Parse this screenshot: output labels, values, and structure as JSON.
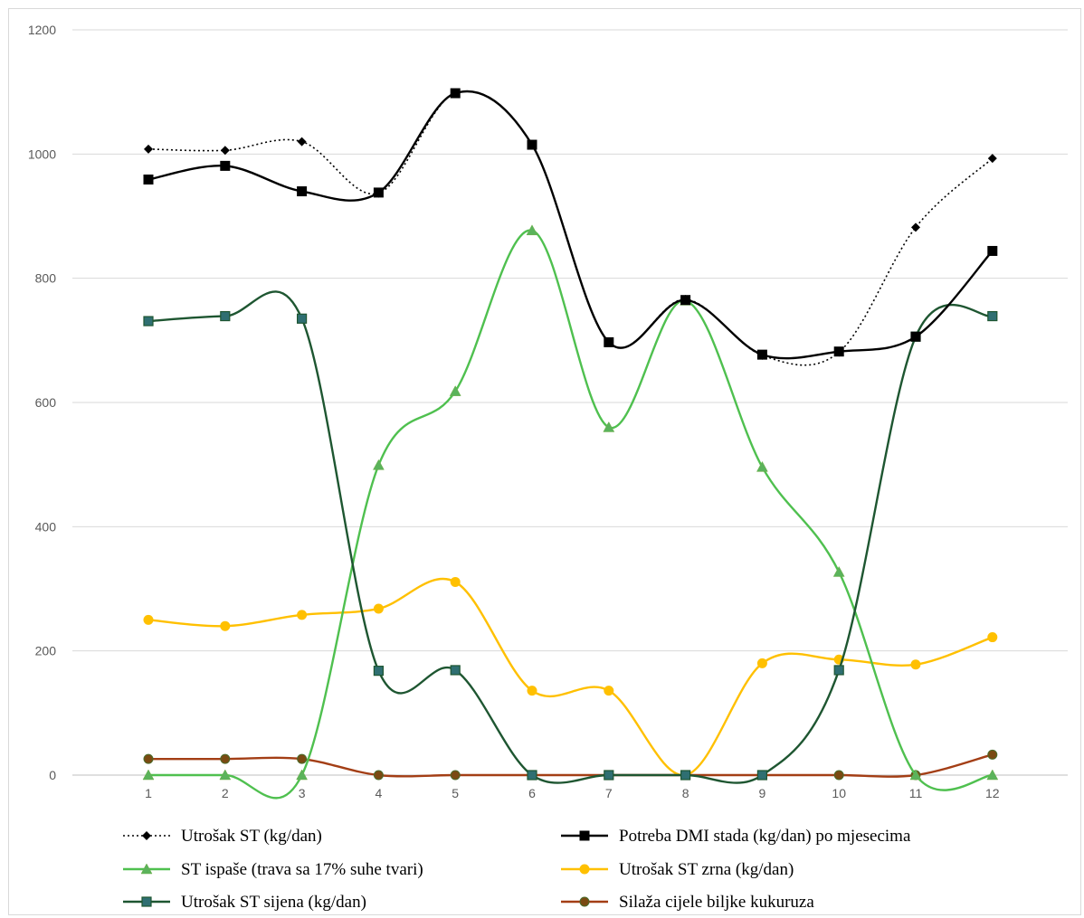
{
  "chart_data": {
    "type": "line",
    "title": "",
    "xlabel": "",
    "ylabel": "",
    "x": [
      1,
      2,
      3,
      4,
      5,
      6,
      7,
      8,
      9,
      10,
      11,
      12
    ],
    "x_tick_labels": [
      "1",
      "2",
      "3",
      "4",
      "5",
      "6",
      "7",
      "8",
      "9",
      "10",
      "11",
      "12"
    ],
    "ylim": [
      0,
      1200
    ],
    "y_ticks": [
      0,
      200,
      400,
      600,
      800,
      1000,
      1200
    ],
    "y_tick_labels": [
      "0",
      "200",
      "400",
      "600",
      "800",
      "1000",
      "1200"
    ],
    "grid": "horizontal",
    "smooth": true,
    "legend_position": "bottom",
    "series": [
      {
        "name": "Utrošak ST (kg/dan)",
        "color": "#000000",
        "dash": "dotted",
        "marker": "diamond",
        "values": [
          1008,
          1006,
          1020,
          937,
          1098,
          1015,
          697,
          766,
          676,
          681,
          882,
          993
        ]
      },
      {
        "name": "Potreba DMI stada (kg/dan) po mjesecima",
        "color": "#000000",
        "dash": "solid",
        "marker": "square",
        "values": [
          959,
          981,
          940,
          938,
          1098,
          1015,
          697,
          765,
          677,
          682,
          706,
          844
        ]
      },
      {
        "name": "ST ispaše (trava sa 17% suhe tvari)",
        "color": "#4fc04f",
        "dash": "solid",
        "marker": "triangle",
        "values": [
          0,
          0,
          0,
          499,
          618,
          877,
          560,
          764,
          496,
          327,
          0,
          0
        ]
      },
      {
        "name": "Utrošak ST zrna (kg/dan)",
        "color": "#ffc000",
        "dash": "solid",
        "marker": "circle",
        "values": [
          250,
          240,
          258,
          268,
          311,
          136,
          136,
          0,
          180,
          186,
          178,
          222
        ]
      },
      {
        "name": "Utrošak ST sijena (kg/dan)",
        "color": "#1e5631",
        "dash": "solid",
        "marker": "square-teal",
        "values": [
          731,
          739,
          735,
          168,
          169,
          0,
          0,
          0,
          0,
          169,
          706,
          739
        ]
      },
      {
        "name": "Silaža cijele biljke kukuruza",
        "color": "#a33e15",
        "dash": "solid",
        "marker": "circle-brown",
        "values": [
          26,
          26,
          26,
          0,
          0,
          0,
          0,
          0,
          0,
          0,
          0,
          33
        ]
      }
    ]
  }
}
